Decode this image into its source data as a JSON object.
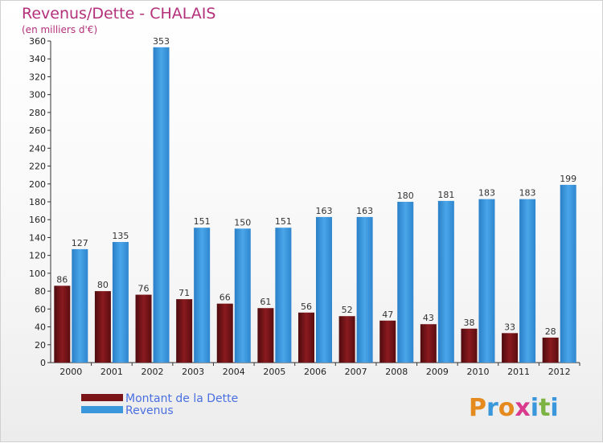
{
  "chart_data": {
    "type": "bar",
    "title": "Revenus/Dette - CHALAIS",
    "subtitle": "(en milliers d'€)",
    "categories": [
      "2000",
      "2001",
      "2002",
      "2003",
      "2004",
      "2005",
      "2006",
      "2007",
      "2008",
      "2009",
      "2010",
      "2011",
      "2012"
    ],
    "series": [
      {
        "name": "Montant de la Dette",
        "values": [
          86,
          80,
          76,
          71,
          66,
          61,
          56,
          52,
          47,
          43,
          38,
          33,
          28
        ],
        "color": "#7a1418"
      },
      {
        "name": "Revenus",
        "values": [
          127,
          135,
          353,
          151,
          150,
          151,
          163,
          163,
          180,
          181,
          183,
          183,
          199
        ],
        "color": "#3b97dc"
      }
    ],
    "ylim": [
      0,
      360
    ],
    "ytick_step": 20,
    "grid": false,
    "legend_position": "bottom-left"
  },
  "brand": {
    "text": "Proxiti",
    "letters": [
      "P",
      "r",
      "o",
      "x",
      "i",
      "t",
      "i"
    ],
    "colors": [
      "#e58a1f",
      "#3b97dc",
      "#e58a1f",
      "#d93a8e",
      "#3b97dc",
      "#7cb342",
      "#3b97dc"
    ]
  }
}
